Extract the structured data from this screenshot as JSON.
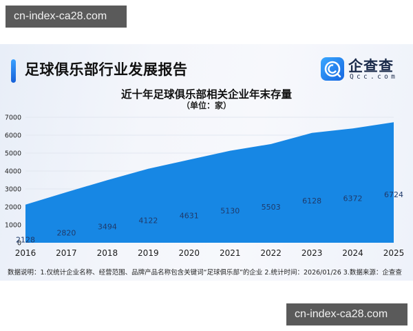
{
  "watermarks": {
    "top": "cn-index-ca28.com",
    "bottom": "cn-index-ca28.com"
  },
  "header": {
    "title": "足球俱乐部行业发展报告",
    "logo": {
      "name_cn": "企查查",
      "domain": "Qcc.com",
      "icon": "qcc-logo-icon"
    }
  },
  "colors": {
    "area": "#1787e4",
    "accent": "#1b73e0",
    "label": "#1f3a6a"
  },
  "chart_data": {
    "type": "area",
    "title": "近十年足球俱乐部相关企业年末存量",
    "subtitle": "（单位：家）",
    "xlabel": "",
    "ylabel": "",
    "categories": [
      "2016",
      "2017",
      "2018",
      "2019",
      "2020",
      "2021",
      "2022",
      "2023",
      "2024",
      "2025"
    ],
    "values": [
      2128,
      2820,
      3494,
      4122,
      4631,
      5130,
      5503,
      6128,
      6372,
      6724
    ],
    "yticks": [
      "0",
      "1000",
      "2000",
      "3000",
      "4000",
      "5000",
      "6000",
      "7000"
    ],
    "ylim": [
      0,
      7000
    ],
    "grid": true,
    "legend": "none"
  },
  "footnote": "数据说明：1.仅统计企业名称、经营范围、品牌产品名称包含关键词“足球俱乐部”的企业  2.统计时间：2026/01/26   3.数据来源：企查查"
}
